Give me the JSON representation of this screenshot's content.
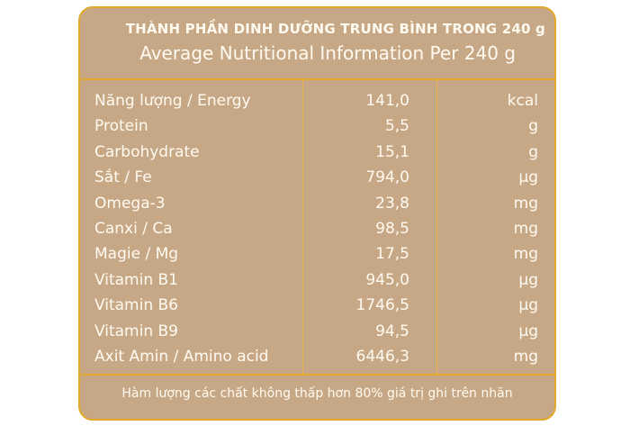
{
  "title_vi": "THÀNH PHẦN DINH DƯỠNG TRUNG BÌNH TRONG 240 g",
  "title_en": "Average Nutritional Information Per 240 g",
  "rows": [
    {
      "label": "Năng lượng / Energy",
      "value": "141,0",
      "unit": "kcal"
    },
    {
      "label": "Protein",
      "value": "5,5",
      "unit": "g"
    },
    {
      "label": "Carbohydrate",
      "value": "15,1",
      "unit": "g"
    },
    {
      "label": "Sắt / Fe",
      "value": "794,0",
      "unit": "µg"
    },
    {
      "label": "Omega-3",
      "value": "23,8",
      "unit": "mg"
    },
    {
      "label": "Canxi  / Ca",
      "value": "98,5",
      "unit": "mg"
    },
    {
      "label": "Magie  / Mg",
      "value": "17,5",
      "unit": "mg"
    },
    {
      "label": "Vitamin B1",
      "value": "945,0",
      "unit": "µg"
    },
    {
      "label": "Vitamin B6",
      "value": "1746,5",
      "unit": "µg"
    },
    {
      "label": "Vitamin B9",
      "value": "94,5",
      "unit": "µg"
    },
    {
      "label": "Axit Amin  / Amino acid",
      "value": "6446,3",
      "unit": "mg"
    }
  ],
  "footnote": "Hàm lượng các chất không thấp hơn 80% giá trị ghi trên nhãn",
  "colors": {
    "panel": "#c7a886",
    "border": "#e2a92a",
    "text": "#fffaf0"
  }
}
